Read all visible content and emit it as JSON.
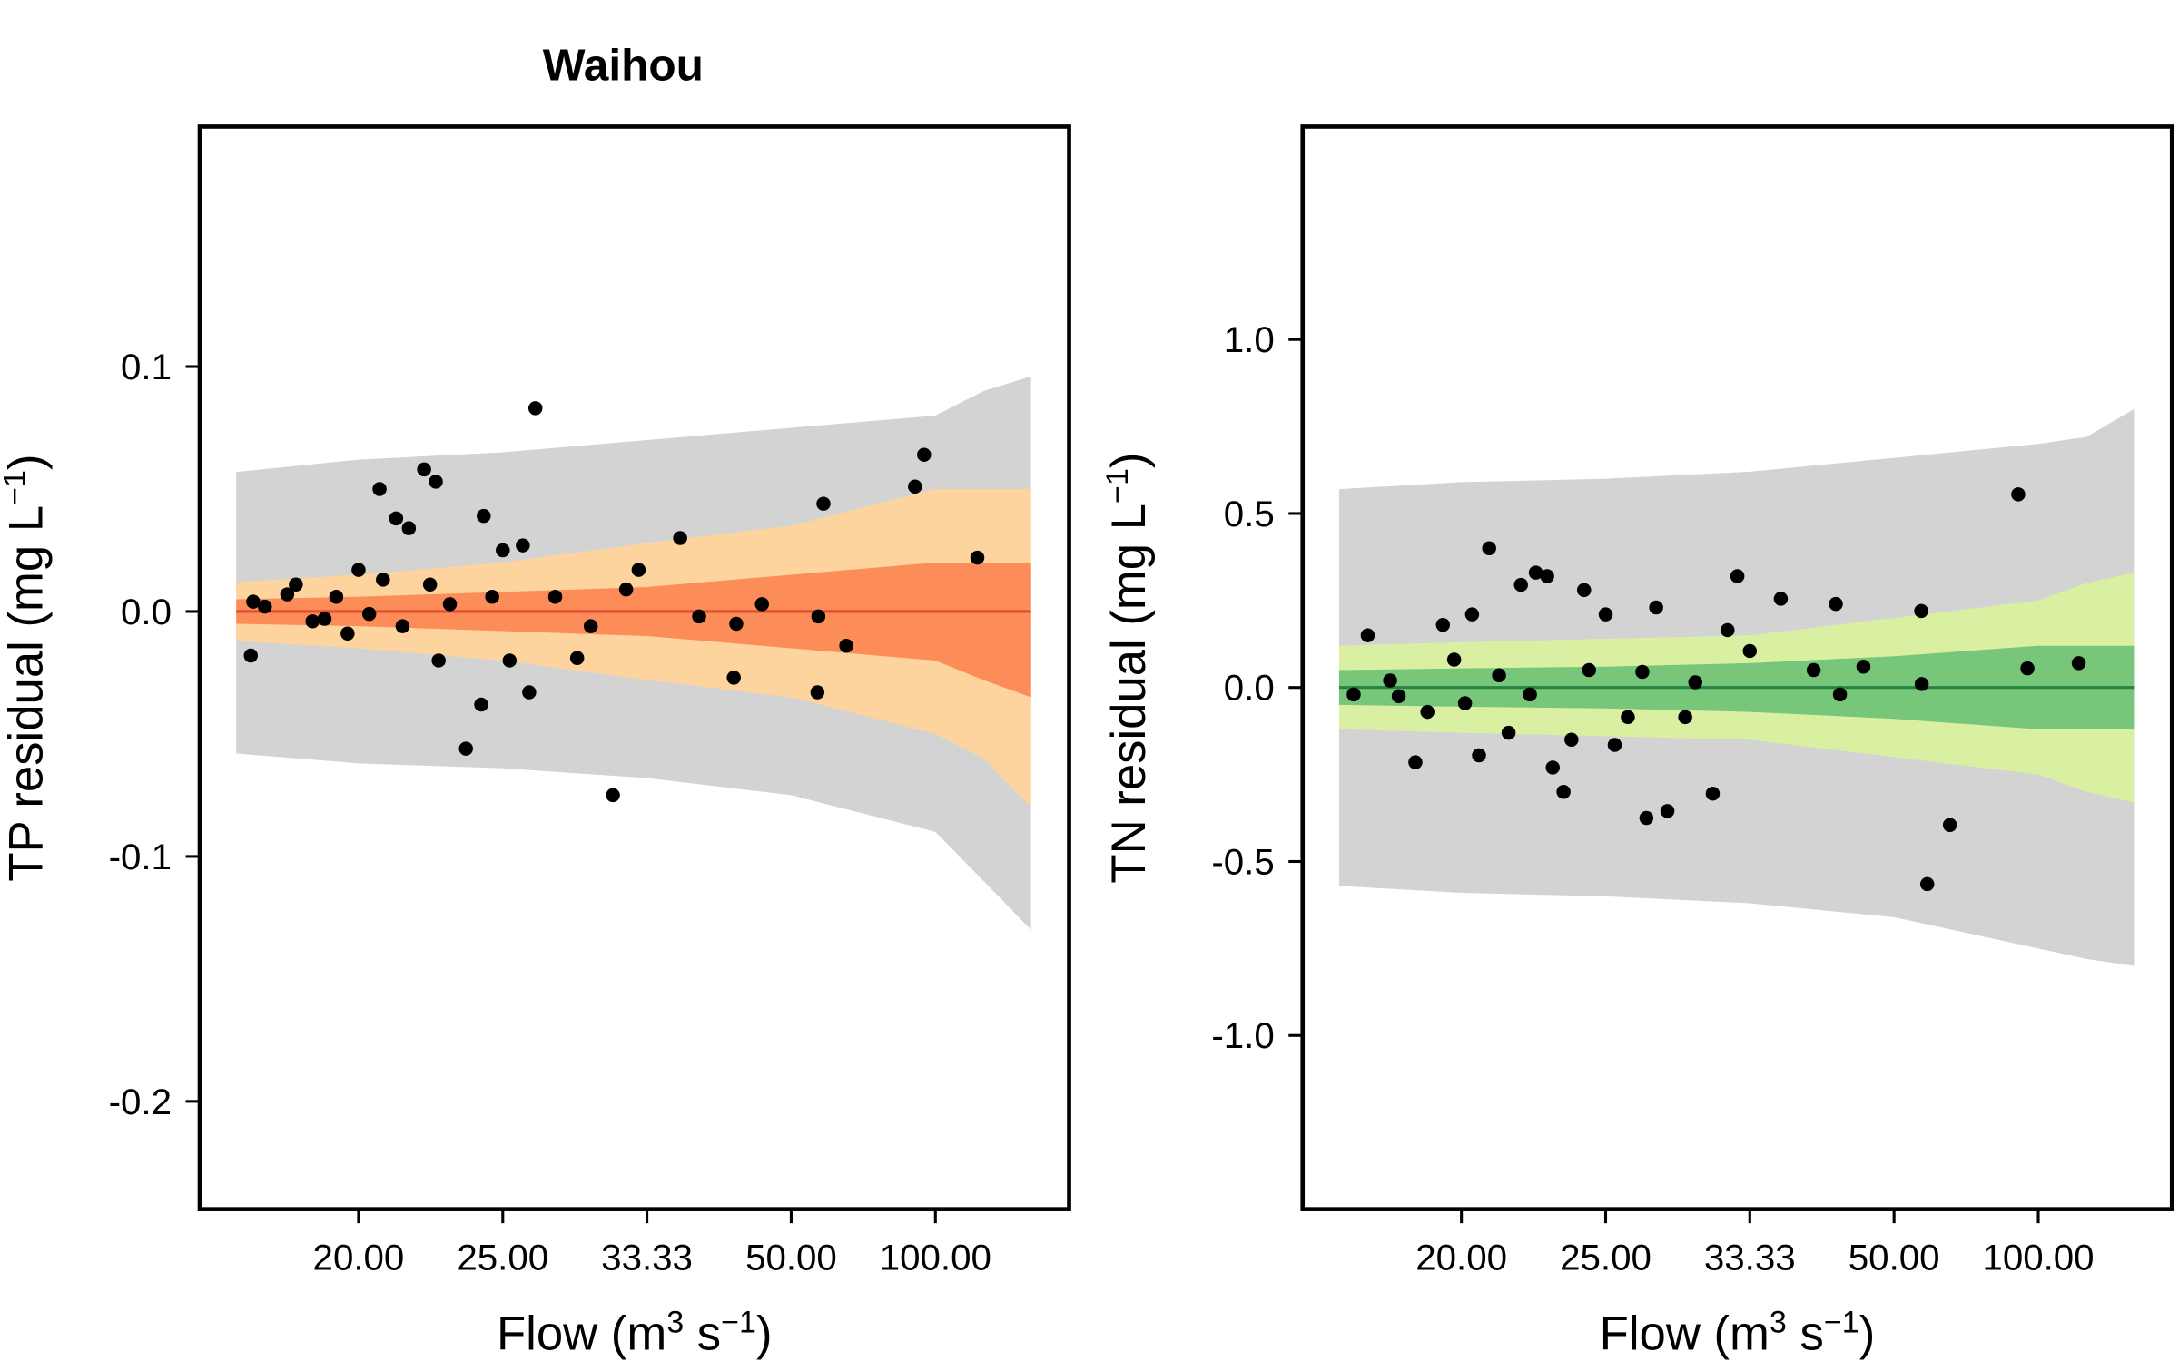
{
  "chart_data": [
    {
      "type": "scatter",
      "title": "Waihou",
      "x_label": [
        "Flow  (m",
        "3",
        " s",
        "−1",
        ")"
      ],
      "y_label": [
        "TP residual  (mg L",
        "−1",
        ")"
      ],
      "xscale": "reciprocal",
      "xlim": [
        16.39,
        1370
      ],
      "ylim": [
        -0.244,
        0.198
      ],
      "xticks": [
        {
          "value": 20,
          "label": "20.00"
        },
        {
          "value": 25,
          "label": "25.00"
        },
        33.33,
        {
          "value": 50,
          "label": "50.00"
        },
        {
          "value": 100,
          "label": "100.00"
        }
      ],
      "yticks": [
        0.1,
        {
          "value": 0,
          "label": "0.0"
        },
        -0.1,
        -0.2
      ],
      "bands": [
        {
          "color": "#d3d3d3",
          "x": [
            17.1,
            20,
            25,
            33.33,
            50,
            100,
            150,
            297
          ],
          "lower": [
            -0.058,
            -0.062,
            -0.064,
            -0.068,
            -0.075,
            -0.09,
            -0.11,
            -0.13
          ],
          "upper": [
            0.057,
            0.062,
            0.065,
            0.07,
            0.075,
            0.08,
            0.09,
            0.096
          ]
        },
        {
          "color": "#fdd49e",
          "x": [
            17.1,
            20,
            25,
            33.33,
            50,
            100,
            150,
            297
          ],
          "lower": [
            -0.012,
            -0.015,
            -0.02,
            -0.028,
            -0.035,
            -0.05,
            -0.06,
            -0.08
          ],
          "upper": [
            0.012,
            0.015,
            0.02,
            0.028,
            0.035,
            0.05,
            0.05,
            0.05
          ]
        },
        {
          "color": "#fc8d59",
          "x": [
            17.1,
            20,
            25,
            33.33,
            50,
            100,
            150,
            297
          ],
          "lower": [
            -0.005,
            -0.006,
            -0.008,
            -0.01,
            -0.015,
            -0.02,
            -0.028,
            -0.035
          ],
          "upper": [
            0.005,
            0.006,
            0.008,
            0.01,
            0.015,
            0.02,
            0.02,
            0.02
          ]
        }
      ],
      "reference_line": {
        "value": 0,
        "color": "#e34a33"
      },
      "point_color": "#000000",
      "x": [
        17.4,
        17.45,
        17.7,
        18.2,
        18.4,
        18.8,
        19.1,
        19.4,
        19.7,
        20,
        20.3,
        20.6,
        20.7,
        21.1,
        21.3,
        21.5,
        22.0,
        22.2,
        22.4,
        22.5,
        22.9,
        23.5,
        24.1,
        24.2,
        24.55,
        25,
        25.3,
        25.9,
        26.2,
        26.5,
        27.5,
        28.7,
        29.5,
        30.9,
        31.8,
        32.7,
        36.1,
        37.9,
        41.7,
        42.0,
        45.4,
        55.0,
        55.2,
        56.3,
        61.8,
        87.6,
        92.7,
        141
      ],
      "values": [
        -0.018,
        0.004,
        0.002,
        0.007,
        0.011,
        -0.004,
        -0.003,
        0.006,
        -0.009,
        0.017,
        -0.001,
        0.05,
        0.013,
        0.038,
        -0.006,
        0.034,
        0.058,
        0.011,
        0.053,
        -0.02,
        0.003,
        -0.056,
        -0.038,
        0.039,
        0.006,
        0.025,
        -0.02,
        0.027,
        -0.033,
        0.083,
        0.006,
        -0.019,
        -0.006,
        -0.075,
        0.009,
        0.017,
        0.03,
        -0.002,
        -0.027,
        -0.005,
        0.003,
        -0.033,
        -0.002,
        0.044,
        -0.014,
        0.051,
        0.064,
        0.022
      ]
    },
    {
      "type": "scatter",
      "x_label": [
        "Flow  (m",
        "3",
        " s",
        "−1",
        ")"
      ],
      "y_label": [
        "TN residual  (mg L",
        "−1",
        ")"
      ],
      "xscale": "reciprocal",
      "xlim": [
        16.39,
        1370
      ],
      "ylim": [
        -1.499,
        1.612
      ],
      "xticks": [
        {
          "value": 20,
          "label": "20.00"
        },
        {
          "value": 25,
          "label": "25.00"
        },
        33.33,
        {
          "value": 50,
          "label": "50.00"
        },
        {
          "value": 100,
          "label": "100.00"
        }
      ],
      "yticks": [
        {
          "value": 1,
          "label": "1.0"
        },
        0.5,
        {
          "value": 0,
          "label": "0.0"
        },
        -0.5,
        {
          "value": -1,
          "label": "-1.0"
        }
      ],
      "bands": [
        {
          "color": "#d3d3d3",
          "x": [
            17.1,
            20,
            25,
            33.33,
            50,
            100,
            150,
            297
          ],
          "lower": [
            -0.57,
            -0.59,
            -0.6,
            -0.62,
            -0.66,
            -0.75,
            -0.78,
            -0.8
          ],
          "upper": [
            0.57,
            0.59,
            0.6,
            0.62,
            0.66,
            0.7,
            0.72,
            0.8
          ]
        },
        {
          "color": "#d9f0a3",
          "x": [
            17.1,
            20,
            25,
            33.33,
            50,
            100,
            150,
            297
          ],
          "lower": [
            -0.12,
            -0.13,
            -0.14,
            -0.15,
            -0.2,
            -0.25,
            -0.3,
            -0.33
          ],
          "upper": [
            0.12,
            0.13,
            0.14,
            0.15,
            0.2,
            0.25,
            0.3,
            0.33
          ]
        },
        {
          "color": "#78c679",
          "x": [
            17.1,
            20,
            25,
            33.33,
            50,
            100,
            150,
            297
          ],
          "lower": [
            -0.05,
            -0.055,
            -0.06,
            -0.07,
            -0.09,
            -0.12,
            -0.12,
            -0.12
          ],
          "upper": [
            0.05,
            0.055,
            0.06,
            0.07,
            0.09,
            0.12,
            0.12,
            0.12
          ]
        }
      ],
      "reference_line": {
        "value": 0,
        "color": "#238443"
      },
      "point_color": "#000000",
      "x": [
        17.4,
        17.7,
        18.2,
        18.4,
        18.8,
        19.1,
        19.5,
        19.8,
        20.1,
        20.3,
        20.5,
        20.8,
        21.1,
        21.4,
        21.8,
        22.1,
        22.3,
        22.7,
        22.9,
        23.3,
        23.6,
        24.1,
        24.3,
        25.0,
        25.4,
        26.0,
        26.7,
        26.9,
        27.4,
        28.0,
        29.0,
        29.6,
        30.7,
        31.7,
        32.4,
        33.33,
        35.9,
        39.1,
        41.6,
        42.1,
        45.2,
        55.2,
        55.3,
        56.5,
        62.0,
        87.8,
        93.0,
        139
      ],
      "values": [
        -0.02,
        0.15,
        0.02,
        -0.025,
        -0.215,
        -0.07,
        0.18,
        0.08,
        -0.045,
        0.21,
        -0.195,
        0.4,
        0.035,
        -0.13,
        0.295,
        -0.02,
        0.33,
        0.32,
        -0.23,
        -0.3,
        -0.15,
        0.28,
        0.05,
        0.21,
        -0.165,
        -0.085,
        0.045,
        -0.375,
        0.23,
        -0.355,
        -0.085,
        0.015,
        -0.305,
        0.165,
        0.32,
        0.105,
        0.255,
        0.05,
        0.24,
        -0.02,
        0.06,
        0.22,
        0.01,
        -0.565,
        -0.395,
        0.555,
        0.055,
        0.07
      ]
    }
  ]
}
